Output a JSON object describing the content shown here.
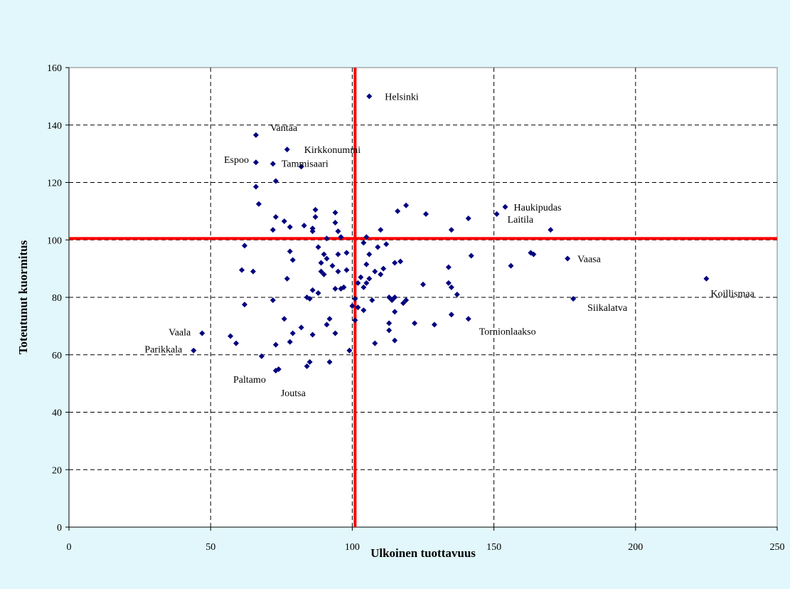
{
  "chart_data": {
    "type": "scatter",
    "title": "",
    "xlabel": "Ulkoinen tuottavuus",
    "ylabel": "Toteutunut kuormitus",
    "xlim": [
      0,
      250
    ],
    "ylim": [
      0,
      160
    ],
    "xticks": [
      0,
      50,
      100,
      150,
      200,
      250
    ],
    "yticks": [
      0,
      20,
      40,
      60,
      80,
      100,
      120,
      140,
      160
    ],
    "grid": true,
    "grid_style": "dashed",
    "marker_color": "#00007f",
    "reference_line_color": "#ff0000",
    "reference_lines": {
      "x": 101,
      "y": 100.5
    },
    "labeled_points": [
      {
        "name": "Helsinki",
        "x": 106,
        "y": 150
      },
      {
        "name": "Vantaa",
        "x": 66,
        "y": 136.5
      },
      {
        "name": "Kirkkonummi",
        "x": 77,
        "y": 131.5
      },
      {
        "name": "Espoo",
        "x": 66,
        "y": 127
      },
      {
        "name": "Tammisaari",
        "x": 72,
        "y": 126.5
      },
      {
        "name": "Haukipudas",
        "x": 154,
        "y": 111.5
      },
      {
        "name": "Laitila",
        "x": 151,
        "y": 109
      },
      {
        "name": "Vaasa",
        "x": 176,
        "y": 93.5
      },
      {
        "name": "Koillismaa",
        "x": 225,
        "y": 86.5
      },
      {
        "name": "Siikalatva",
        "x": 178,
        "y": 79.5
      },
      {
        "name": "Tornionlaakso",
        "x": 141,
        "y": 72.5
      },
      {
        "name": "Vaala",
        "x": 47,
        "y": 67.5
      },
      {
        "name": "Parikkala",
        "x": 44,
        "y": 61.5
      },
      {
        "name": "Paltamo",
        "x": 73,
        "y": 54.5
      },
      {
        "name": "Joutsa",
        "x": 74,
        "y": 55
      }
    ],
    "points": [
      [
        82,
        125.5
      ],
      [
        73,
        120.5
      ],
      [
        66,
        118.5
      ],
      [
        67,
        112.5
      ],
      [
        87,
        110.5
      ],
      [
        94,
        109.5
      ],
      [
        73,
        108
      ],
      [
        87,
        108
      ],
      [
        76,
        106.5
      ],
      [
        94,
        106
      ],
      [
        83,
        105
      ],
      [
        78,
        104.5
      ],
      [
        86,
        104
      ],
      [
        72,
        103.5
      ],
      [
        86,
        103
      ],
      [
        95,
        103
      ],
      [
        96,
        101
      ],
      [
        91,
        100.5
      ],
      [
        105,
        101
      ],
      [
        104,
        99
      ],
      [
        62,
        98
      ],
      [
        88,
        97.5
      ],
      [
        78,
        96
      ],
      [
        90,
        95
      ],
      [
        95,
        95
      ],
      [
        98,
        95.5
      ],
      [
        91,
        93.5
      ],
      [
        79,
        93
      ],
      [
        89,
        92
      ],
      [
        93,
        91
      ],
      [
        61,
        89.5
      ],
      [
        65,
        89
      ],
      [
        89,
        89
      ],
      [
        95,
        89
      ],
      [
        98,
        89.5
      ],
      [
        90,
        88
      ],
      [
        77,
        86.5
      ],
      [
        86,
        82.5
      ],
      [
        88,
        81.5
      ],
      [
        94,
        83
      ],
      [
        96,
        83
      ],
      [
        97,
        83.5
      ],
      [
        84,
        80
      ],
      [
        85,
        79.5
      ],
      [
        72,
        79
      ],
      [
        62,
        77.5
      ],
      [
        91,
        70.5
      ],
      [
        92,
        72.5
      ],
      [
        76,
        72.5
      ],
      [
        82,
        69.5
      ],
      [
        79,
        67.5
      ],
      [
        86,
        67
      ],
      [
        94,
        67.5
      ],
      [
        57,
        66.5
      ],
      [
        59,
        64
      ],
      [
        78,
        64.5
      ],
      [
        73,
        63.5
      ],
      [
        68,
        59.5
      ],
      [
        85,
        57.5
      ],
      [
        84,
        56
      ],
      [
        92,
        57.5
      ],
      [
        99,
        61.5
      ],
      [
        100,
        77
      ],
      [
        101,
        72
      ],
      [
        102,
        76.5
      ],
      [
        102,
        85
      ],
      [
        103,
        87
      ],
      [
        104,
        83.5
      ],
      [
        105,
        85
      ],
      [
        105,
        91.5
      ],
      [
        106,
        86.5
      ],
      [
        107,
        79
      ],
      [
        108,
        89
      ],
      [
        109,
        97.5
      ],
      [
        110,
        103.5
      ],
      [
        110,
        88
      ],
      [
        111,
        90
      ],
      [
        112,
        98.5
      ],
      [
        113,
        80
      ],
      [
        113,
        71
      ],
      [
        113,
        68.5
      ],
      [
        114,
        79
      ],
      [
        115,
        92
      ],
      [
        115,
        80
      ],
      [
        115,
        75
      ],
      [
        115,
        65
      ],
      [
        116,
        110
      ],
      [
        117,
        92.5
      ],
      [
        118,
        78
      ],
      [
        119,
        112
      ],
      [
        119,
        79
      ],
      [
        122,
        71
      ],
      [
        125,
        84.5
      ],
      [
        126,
        109
      ],
      [
        129,
        70.5
      ],
      [
        134,
        90.5
      ],
      [
        134,
        85
      ],
      [
        135,
        83.5
      ],
      [
        135,
        103.5
      ],
      [
        135,
        74
      ],
      [
        137,
        81
      ],
      [
        141,
        107.5
      ],
      [
        142,
        94.5
      ],
      [
        156,
        91
      ],
      [
        163,
        95.5
      ],
      [
        164,
        95
      ],
      [
        170,
        103.5
      ],
      [
        108,
        64
      ],
      [
        106,
        95
      ],
      [
        104,
        75.5
      ],
      [
        101,
        79.5
      ]
    ]
  }
}
